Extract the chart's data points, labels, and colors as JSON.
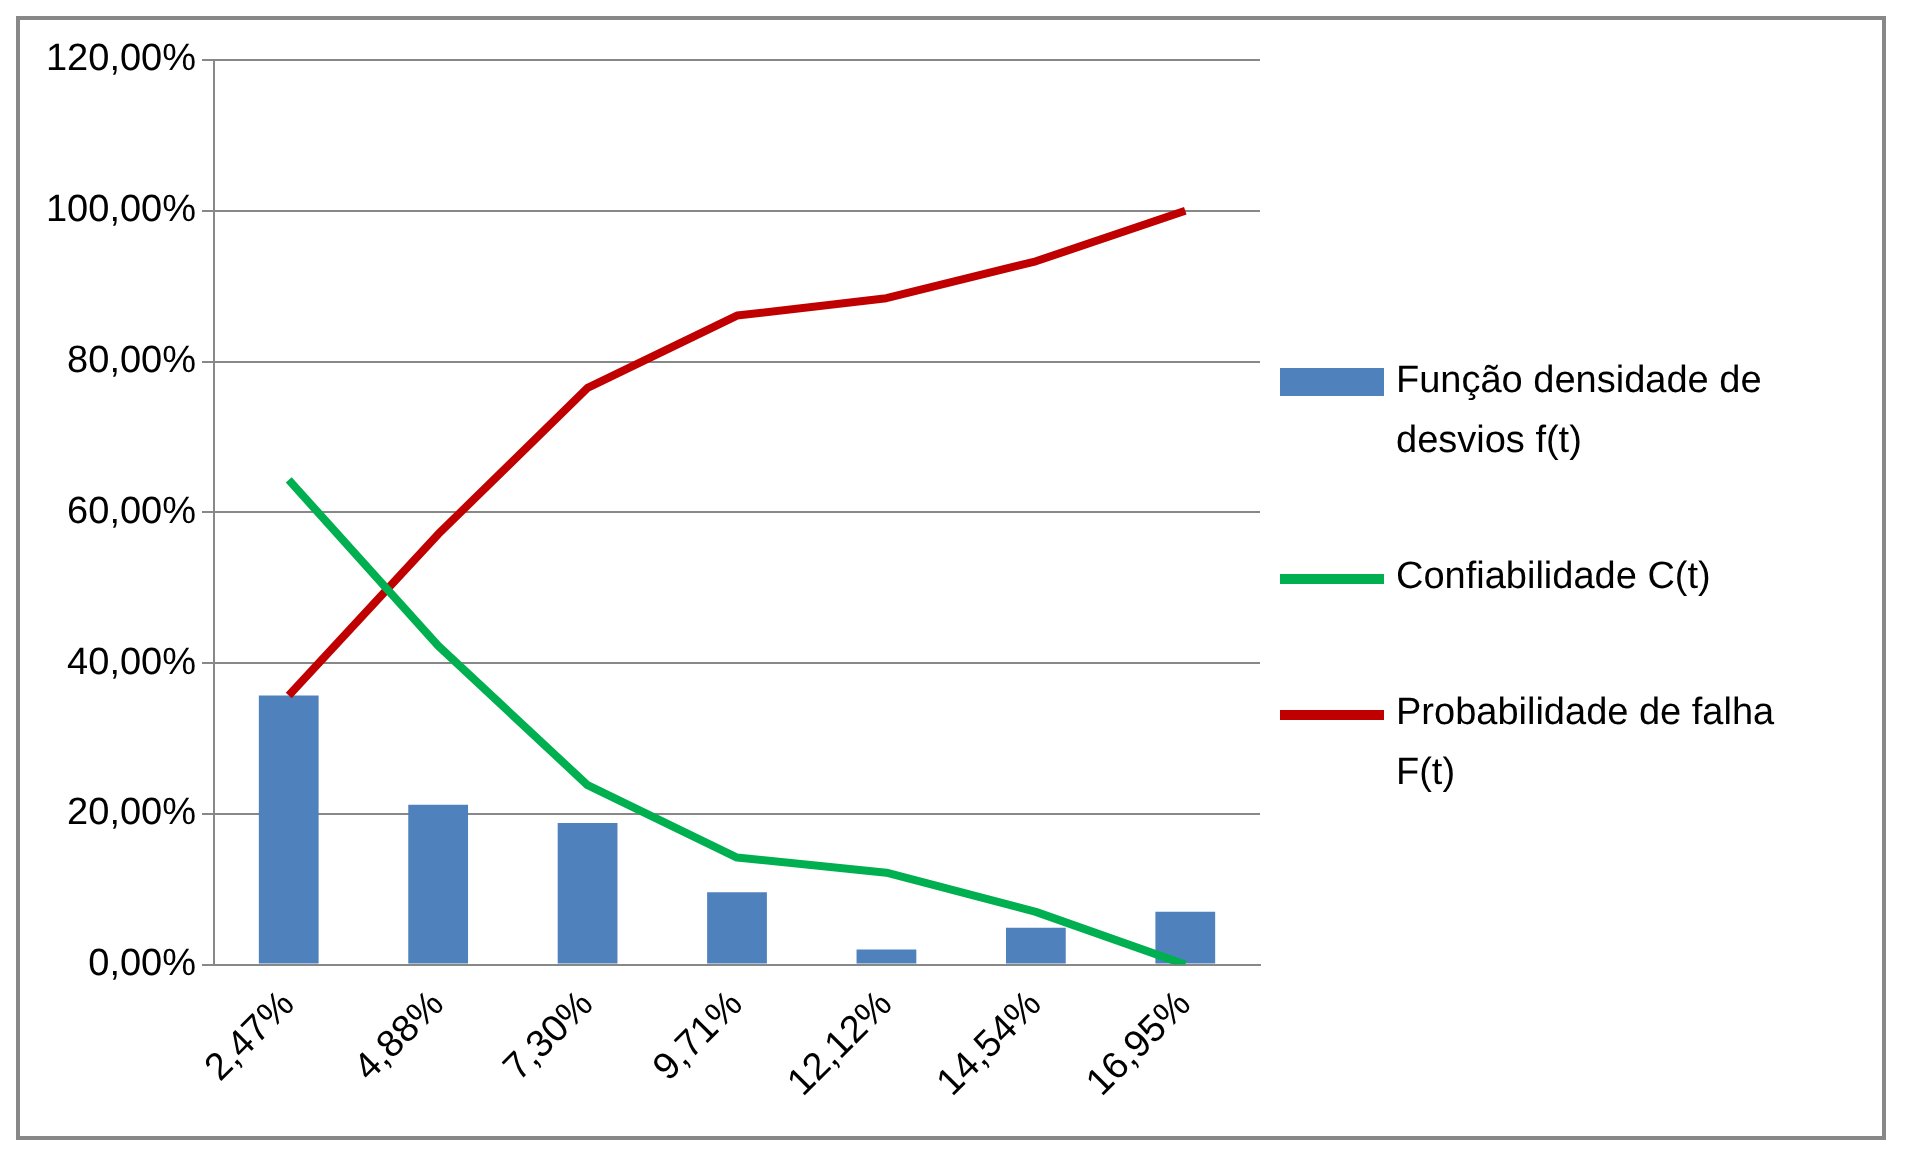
{
  "chart_data": {
    "type": "bar",
    "categories": [
      "2,47%",
      "4,88%",
      "7,30%",
      "9,71%",
      "12,12%",
      "14,54%",
      "16,95%"
    ],
    "series": [
      {
        "name": "Função densidade de desvios f(t)",
        "color": "#4f81bd",
        "values": [
          35.7,
          21.2,
          18.8,
          9.6,
          2.0,
          4.9,
          7.0
        ]
      },
      {
        "name": "Confiabilidade C(t)",
        "type": "line",
        "color": "#00b050",
        "values": [
          64.3,
          42.3,
          23.8,
          14.2,
          12.2,
          7.0,
          0.0
        ]
      },
      {
        "name": "Probabilidade de falha F(t)",
        "type": "line",
        "color": "#c00000",
        "values": [
          35.7,
          57.1,
          76.5,
          86.1,
          88.4,
          93.3,
          100.0
        ]
      }
    ],
    "ylim": [
      0,
      120
    ],
    "yticks": [
      {
        "value": 0,
        "label": "0,00%"
      },
      {
        "value": 20,
        "label": "20,00%"
      },
      {
        "value": 40,
        "label": "40,00%"
      },
      {
        "value": 60,
        "label": "60,00%"
      },
      {
        "value": 80,
        "label": "80,00%"
      },
      {
        "value": 100,
        "label": "100,00%"
      },
      {
        "value": 120,
        "label": "120,00%"
      }
    ],
    "grid": "y",
    "legend": "right",
    "marker": "none",
    "line_style": "solid"
  }
}
